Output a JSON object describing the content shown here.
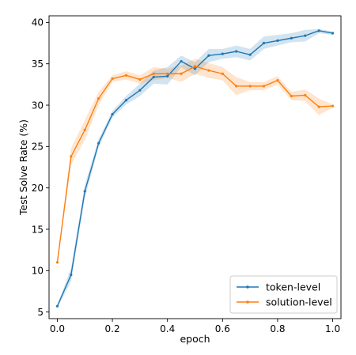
{
  "chart_data": {
    "type": "line",
    "xlabel": "epoch",
    "ylabel": "Test Solve Rate (%)",
    "xlim": [
      -0.03,
      1.03
    ],
    "ylim": [
      4.2,
      40.8
    ],
    "xticks": [
      0.0,
      0.2,
      0.4,
      0.6,
      0.8,
      1.0
    ],
    "xtick_labels": [
      "0.0",
      "0.2",
      "0.4",
      "0.6",
      "0.8",
      "1.0"
    ],
    "yticks": [
      5,
      10,
      15,
      20,
      25,
      30,
      35,
      40
    ],
    "ytick_labels": [
      "5",
      "10",
      "15",
      "20",
      "25",
      "30",
      "35",
      "40"
    ],
    "grid": false,
    "legend_position": "bottom-right",
    "x": [
      0.0,
      0.05,
      0.1,
      0.15,
      0.2,
      0.25,
      0.3,
      0.35,
      0.4,
      0.45,
      0.5,
      0.55,
      0.6,
      0.65,
      0.7,
      0.75,
      0.8,
      0.85,
      0.9,
      0.95,
      1.0
    ],
    "series": [
      {
        "name": "token-level",
        "color": "#1f77b4",
        "values": [
          5.7,
          9.5,
          19.6,
          25.4,
          28.9,
          30.6,
          31.8,
          33.4,
          33.5,
          35.3,
          34.4,
          36.0,
          36.2,
          36.5,
          36.1,
          37.5,
          37.8,
          38.1,
          38.4,
          39.0,
          38.7
        ],
        "lower": [
          5.5,
          8.7,
          18.8,
          24.9,
          28.5,
          30.1,
          31.1,
          32.6,
          32.5,
          34.6,
          33.6,
          35.2,
          35.6,
          35.8,
          35.4,
          36.8,
          37.2,
          37.6,
          37.7,
          38.7,
          38.5
        ],
        "upper": [
          5.9,
          10.3,
          20.4,
          25.9,
          29.3,
          31.1,
          32.6,
          34.2,
          34.6,
          36.0,
          35.2,
          36.8,
          36.8,
          37.2,
          36.8,
          38.3,
          38.5,
          38.7,
          39.1,
          39.2,
          38.9
        ]
      },
      {
        "name": "solution-level",
        "color": "#ff7f0e",
        "values": [
          11.0,
          23.8,
          27.0,
          30.8,
          33.2,
          33.6,
          33.1,
          33.8,
          33.8,
          33.8,
          34.7,
          34.2,
          33.8,
          32.3,
          32.3,
          32.3,
          33.0,
          31.1,
          31.2,
          29.8,
          29.9
        ],
        "lower": [
          10.7,
          22.8,
          25.8,
          30.0,
          32.8,
          33.1,
          32.6,
          33.0,
          33.3,
          32.8,
          33.8,
          33.3,
          33.0,
          31.2,
          31.8,
          31.8,
          32.5,
          30.6,
          30.5,
          28.8,
          29.7
        ],
        "upper": [
          11.3,
          24.8,
          28.2,
          31.6,
          33.6,
          34.1,
          33.6,
          34.6,
          34.4,
          34.8,
          35.6,
          35.1,
          34.6,
          33.4,
          32.8,
          32.8,
          33.5,
          31.6,
          31.9,
          30.8,
          30.1
        ]
      }
    ]
  }
}
